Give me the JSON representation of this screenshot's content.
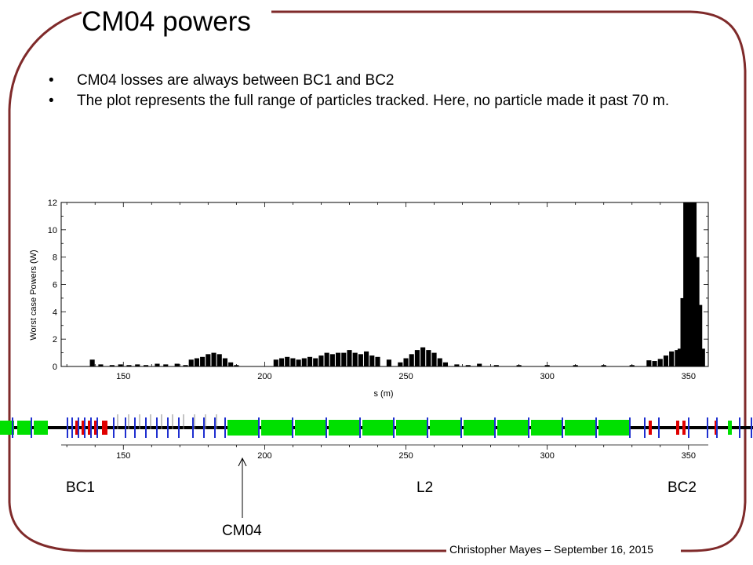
{
  "slide": {
    "title": "CM04 powers",
    "bullets": [
      "CM04 losses are always between BC1 and BC2",
      "The plot represents the full range of particles tracked. Here, no particle made it past 70 m."
    ],
    "sections": {
      "bc1": "BC1",
      "l2": "L2",
      "bc2": "BC2"
    },
    "marker_label": "CM04",
    "footer": "Christopher Mayes – September 16, 2015",
    "colors": {
      "frame": "#7f2a2a",
      "bars": "#000000",
      "cavity": "#00e000",
      "bend": "#e00000",
      "quad": "#1f2fd0"
    }
  },
  "chart_data": {
    "type": "bar",
    "xlabel": "s (m)",
    "ylabel": "Worst case Powers (W)",
    "xlim": [
      128,
      357
    ],
    "ylim": [
      0,
      12
    ],
    "xticks": [
      150,
      200,
      250,
      300,
      350
    ],
    "yticks": [
      0,
      2,
      4,
      6,
      8,
      10,
      12
    ],
    "bin_width": 1.7,
    "x": [
      139,
      142,
      146,
      149,
      152,
      155,
      158,
      162,
      165,
      169,
      172,
      174,
      176,
      178,
      180,
      182,
      184,
      186,
      188,
      190,
      204,
      206,
      208,
      210,
      212,
      214,
      216,
      218,
      220,
      222,
      224,
      226,
      228,
      230,
      232,
      234,
      236,
      238,
      240,
      244,
      248,
      250,
      252,
      254,
      256,
      258,
      260,
      262,
      264,
      268,
      272,
      276,
      282,
      290,
      300,
      310,
      320,
      330,
      336,
      338,
      340,
      342,
      344,
      346,
      347,
      348,
      349,
      350,
      351,
      352,
      353,
      354,
      355
    ],
    "values": [
      0.5,
      0.15,
      0.1,
      0.15,
      0.1,
      0.15,
      0.1,
      0.2,
      0.15,
      0.2,
      0.1,
      0.5,
      0.6,
      0.7,
      0.9,
      1.0,
      0.9,
      0.6,
      0.3,
      0.1,
      0.5,
      0.6,
      0.7,
      0.6,
      0.5,
      0.6,
      0.7,
      0.6,
      0.8,
      1.0,
      0.9,
      1.0,
      1.0,
      1.2,
      1.0,
      0.9,
      1.1,
      0.8,
      0.7,
      0.5,
      0.3,
      0.6,
      0.9,
      1.2,
      1.4,
      1.2,
      1.0,
      0.6,
      0.3,
      0.15,
      0.1,
      0.2,
      0.1,
      0.1,
      0.1,
      0.1,
      0.1,
      0.1,
      0.45,
      0.4,
      0.55,
      0.8,
      1.1,
      1.2,
      1.3,
      5.0,
      12.0,
      12.0,
      12.0,
      12.0,
      8.0,
      4.5,
      1.3
    ]
  }
}
